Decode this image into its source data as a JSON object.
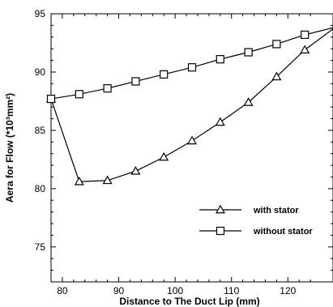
{
  "chart_data": {
    "type": "line",
    "title": "",
    "xlabel": "Distance to The Duct Lip (mm)",
    "ylabel": "Aera for Flow (*10³mm²)",
    "xlim": [
      78,
      128
    ],
    "ylim": [
      72,
      95
    ],
    "x_ticks": [
      80,
      90,
      100,
      110,
      120
    ],
    "y_ticks": [
      75,
      80,
      85,
      90,
      95
    ],
    "grid": false,
    "legend_position": "lower-right",
    "series": [
      {
        "name": "with stator",
        "marker": "triangle",
        "x": [
          78,
          83,
          88,
          93,
          98,
          103,
          108,
          113,
          118,
          123,
          128
        ],
        "y": [
          87.7,
          80.6,
          80.7,
          81.5,
          82.7,
          84.1,
          85.7,
          87.4,
          89.6,
          91.9,
          93.7
        ]
      },
      {
        "name": "without stator",
        "marker": "square",
        "x": [
          78,
          83,
          88,
          93,
          98,
          103,
          108,
          113,
          118,
          123,
          128
        ],
        "y": [
          87.7,
          88.1,
          88.6,
          89.2,
          89.8,
          90.4,
          91.1,
          91.7,
          92.4,
          93.2,
          93.8
        ]
      }
    ],
    "colors": {
      "line": "#000000",
      "background": "#ffffff"
    }
  }
}
